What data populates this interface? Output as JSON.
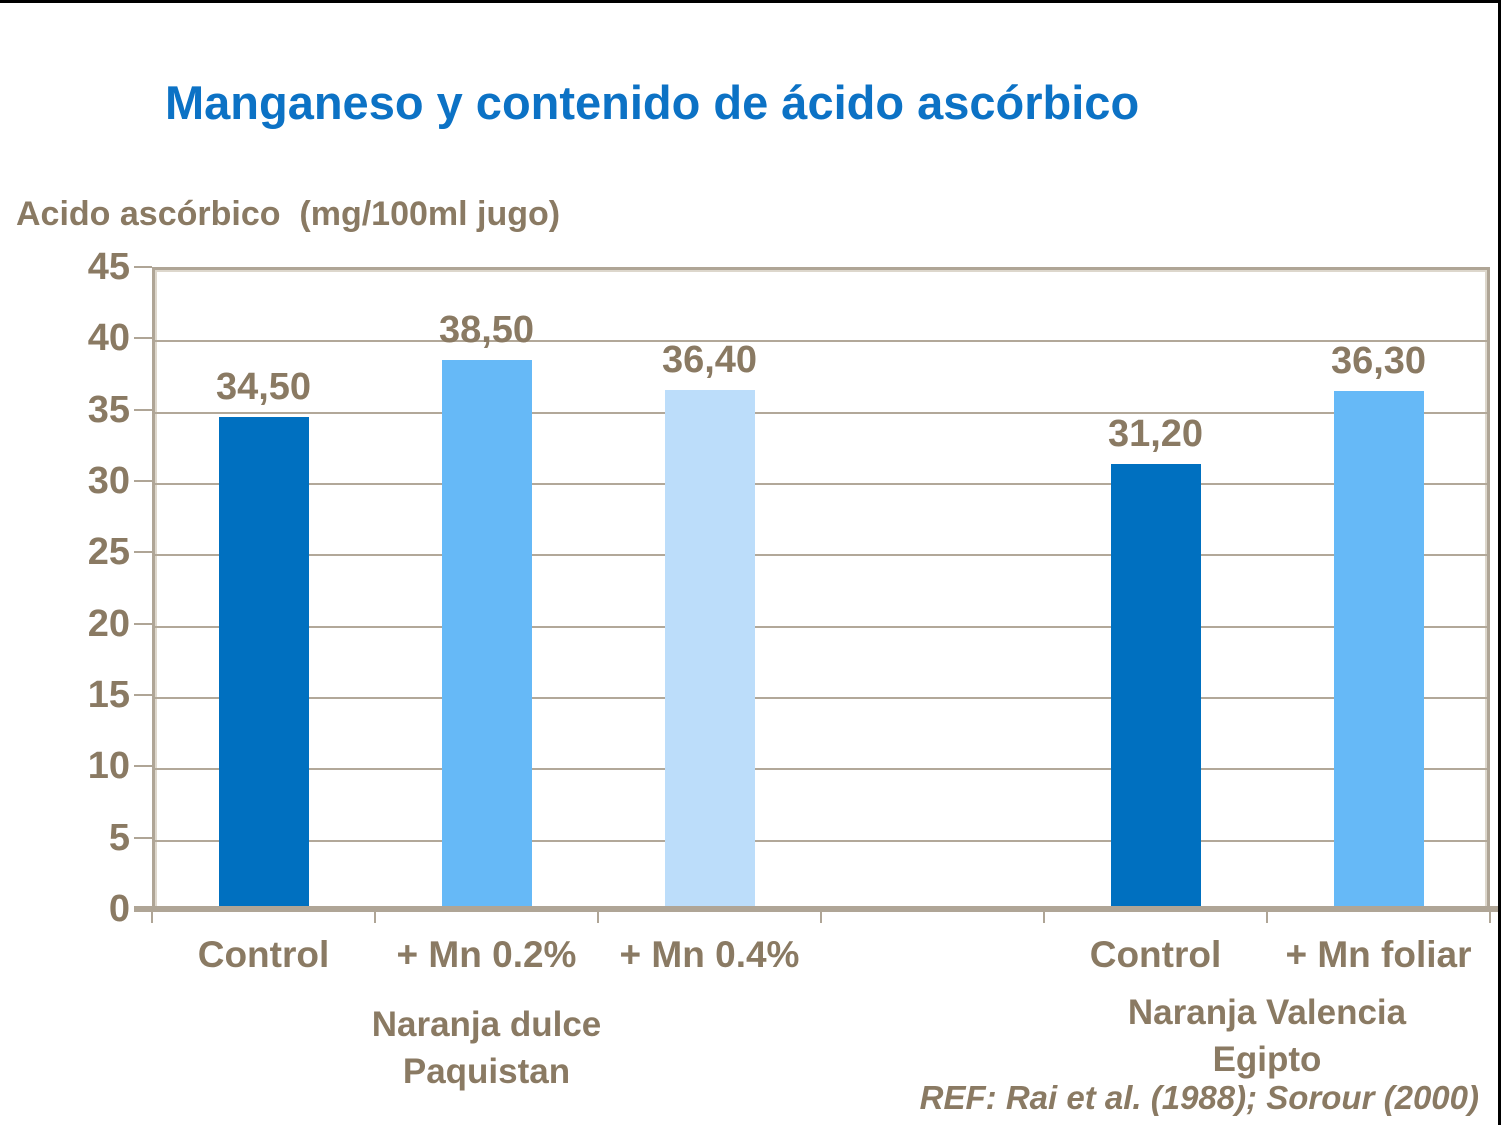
{
  "page": {
    "title": "Manganeso y contenido de ácido ascórbico",
    "ref": "REF: Rai et al. (1988); Sorour (2000)"
  },
  "chart_data": {
    "type": "bar",
    "title": "Manganeso y contenido de ácido ascórbico",
    "ylabel": "Acido ascórbico  (mg/100ml jugo)",
    "xlabel": "",
    "ylim": [
      0,
      45
    ],
    "yticks": [
      0,
      5,
      10,
      15,
      20,
      25,
      30,
      35,
      40,
      45
    ],
    "grid": true,
    "legend_position": "none",
    "categories": [
      "Control",
      "+ Mn 0.2%",
      "+ Mn 0.4%",
      "",
      "Control",
      "+ Mn foliar"
    ],
    "values": [
      34.5,
      38.5,
      36.4,
      null,
      31.2,
      36.3
    ],
    "value_labels": [
      "34,50",
      "38,50",
      "36,40",
      "",
      "31,20",
      "36,30"
    ],
    "bar_colors": [
      "#0070C0",
      "#66B9F7",
      "#BCDDFA",
      "",
      "#0070C0",
      "#66B9F7"
    ],
    "groups": [
      {
        "label_lines": [
          "Naranja dulce",
          "Paquistan"
        ],
        "slots": [
          0,
          2
        ]
      },
      {
        "label_lines": [
          "Naranja Valencia",
          "Egipto"
        ],
        "slots": [
          4,
          5
        ]
      }
    ],
    "annotation": "REF: Rai et al. (1988); Sorour (2000)",
    "colors": {
      "title": "#0C72C5",
      "text": "#8A7A63",
      "axis": "#AFA596",
      "bar_dark": "#0070C0",
      "bar_medium": "#66B9F7",
      "bar_light": "#BCDDFA"
    }
  }
}
